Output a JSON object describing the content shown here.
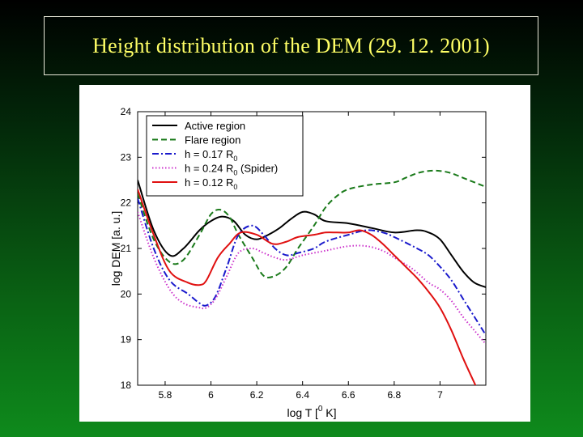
{
  "slide": {
    "title": "Height distribution of the DEM (29. 12. 2001)"
  },
  "chart_data": {
    "type": "line",
    "title": "",
    "xlabel": "log T [⁰ K]",
    "xlabel_main": "log T [",
    "xlabel_sup": "0",
    "xlabel_end": " K]",
    "ylabel": "log DEM [a. u.]",
    "xlim": [
      5.68,
      7.2
    ],
    "ylim": [
      18,
      24
    ],
    "xticks": [
      "5.8",
      "6",
      "6.2",
      "6.4",
      "6.6",
      "6.8",
      "7"
    ],
    "xtick_values": [
      5.8,
      6.0,
      6.2,
      6.4,
      6.6,
      6.8,
      7.0
    ],
    "yticks": [
      "18",
      "19",
      "20",
      "21",
      "22",
      "23",
      "24"
    ],
    "ytick_values": [
      18,
      19,
      20,
      21,
      22,
      23,
      24
    ],
    "grid": false,
    "legend_position": "top-left",
    "series": [
      {
        "name": "Active region",
        "color": "#000000",
        "dash": "solid",
        "points": [
          [
            5.68,
            22.5
          ],
          [
            5.75,
            21.4
          ],
          [
            5.82,
            20.85
          ],
          [
            5.88,
            21.0
          ],
          [
            5.95,
            21.4
          ],
          [
            6.0,
            21.6
          ],
          [
            6.05,
            21.7
          ],
          [
            6.1,
            21.6
          ],
          [
            6.15,
            21.3
          ],
          [
            6.2,
            21.2
          ],
          [
            6.25,
            21.3
          ],
          [
            6.3,
            21.45
          ],
          [
            6.35,
            21.65
          ],
          [
            6.4,
            21.8
          ],
          [
            6.45,
            21.75
          ],
          [
            6.5,
            21.6
          ],
          [
            6.6,
            21.55
          ],
          [
            6.7,
            21.45
          ],
          [
            6.8,
            21.35
          ],
          [
            6.9,
            21.4
          ],
          [
            6.95,
            21.35
          ],
          [
            7.0,
            21.2
          ],
          [
            7.05,
            20.85
          ],
          [
            7.1,
            20.5
          ],
          [
            7.15,
            20.25
          ],
          [
            7.2,
            20.15
          ]
        ]
      },
      {
        "name": "Flare region",
        "color": "#1a7a1a",
        "dash": "dashed",
        "points": [
          [
            5.68,
            22.2
          ],
          [
            5.75,
            21.2
          ],
          [
            5.82,
            20.7
          ],
          [
            5.88,
            20.75
          ],
          [
            5.95,
            21.3
          ],
          [
            6.0,
            21.75
          ],
          [
            6.04,
            21.85
          ],
          [
            6.08,
            21.7
          ],
          [
            6.12,
            21.3
          ],
          [
            6.18,
            20.8
          ],
          [
            6.23,
            20.4
          ],
          [
            6.28,
            20.4
          ],
          [
            6.33,
            20.6
          ],
          [
            6.38,
            21.0
          ],
          [
            6.45,
            21.5
          ],
          [
            6.5,
            21.9
          ],
          [
            6.55,
            22.15
          ],
          [
            6.6,
            22.3
          ],
          [
            6.7,
            22.4
          ],
          [
            6.8,
            22.45
          ],
          [
            6.85,
            22.55
          ],
          [
            6.9,
            22.65
          ],
          [
            6.95,
            22.7
          ],
          [
            7.0,
            22.7
          ],
          [
            7.05,
            22.65
          ],
          [
            7.1,
            22.55
          ],
          [
            7.15,
            22.45
          ],
          [
            7.2,
            22.35
          ]
        ]
      },
      {
        "name": "h = 0.17 R",
        "name_sub": "0",
        "color": "#1a1acc",
        "dash": "dashdot",
        "points": [
          [
            5.68,
            22.1
          ],
          [
            5.75,
            21.0
          ],
          [
            5.82,
            20.3
          ],
          [
            5.9,
            20.0
          ],
          [
            5.95,
            19.8
          ],
          [
            5.98,
            19.75
          ],
          [
            6.02,
            19.95
          ],
          [
            6.07,
            20.6
          ],
          [
            6.12,
            21.3
          ],
          [
            6.18,
            21.5
          ],
          [
            6.23,
            21.3
          ],
          [
            6.28,
            21.0
          ],
          [
            6.33,
            20.85
          ],
          [
            6.38,
            20.9
          ],
          [
            6.45,
            21.0
          ],
          [
            6.5,
            21.15
          ],
          [
            6.6,
            21.3
          ],
          [
            6.68,
            21.4
          ],
          [
            6.75,
            21.35
          ],
          [
            6.8,
            21.25
          ],
          [
            6.9,
            21.0
          ],
          [
            6.95,
            20.85
          ],
          [
            7.0,
            20.6
          ],
          [
            7.05,
            20.3
          ],
          [
            7.1,
            19.9
          ],
          [
            7.15,
            19.5
          ],
          [
            7.2,
            19.1
          ]
        ]
      },
      {
        "name": "h = 0.24 R",
        "name_sub": "0",
        "name_suffix": " (Spider)",
        "color": "#cc33cc",
        "dash": "dotted",
        "points": [
          [
            5.68,
            21.8
          ],
          [
            5.75,
            20.8
          ],
          [
            5.82,
            20.1
          ],
          [
            5.88,
            19.8
          ],
          [
            5.95,
            19.7
          ],
          [
            5.98,
            19.7
          ],
          [
            6.02,
            19.9
          ],
          [
            6.07,
            20.4
          ],
          [
            6.12,
            20.9
          ],
          [
            6.18,
            21.0
          ],
          [
            6.23,
            20.9
          ],
          [
            6.28,
            20.8
          ],
          [
            6.33,
            20.75
          ],
          [
            6.4,
            20.85
          ],
          [
            6.5,
            20.95
          ],
          [
            6.6,
            21.05
          ],
          [
            6.68,
            21.05
          ],
          [
            6.75,
            20.95
          ],
          [
            6.8,
            20.8
          ],
          [
            6.88,
            20.55
          ],
          [
            6.95,
            20.25
          ],
          [
            7.0,
            20.1
          ],
          [
            7.05,
            19.85
          ],
          [
            7.1,
            19.5
          ],
          [
            7.15,
            19.2
          ],
          [
            7.2,
            18.9
          ]
        ]
      },
      {
        "name": "h = 0.12 R",
        "name_sub": "0",
        "color": "#e01010",
        "dash": "solid",
        "points": [
          [
            5.68,
            22.3
          ],
          [
            5.75,
            21.3
          ],
          [
            5.82,
            20.5
          ],
          [
            5.9,
            20.25
          ],
          [
            5.95,
            20.2
          ],
          [
            5.98,
            20.3
          ],
          [
            6.03,
            20.8
          ],
          [
            6.08,
            21.1
          ],
          [
            6.13,
            21.35
          ],
          [
            6.2,
            21.3
          ],
          [
            6.27,
            21.1
          ],
          [
            6.33,
            21.15
          ],
          [
            6.38,
            21.25
          ],
          [
            6.45,
            21.3
          ],
          [
            6.5,
            21.35
          ],
          [
            6.55,
            21.35
          ],
          [
            6.6,
            21.35
          ],
          [
            6.65,
            21.4
          ],
          [
            6.7,
            21.3
          ],
          [
            6.75,
            21.1
          ],
          [
            6.8,
            20.85
          ],
          [
            6.85,
            20.6
          ],
          [
            6.9,
            20.35
          ],
          [
            6.95,
            20.05
          ],
          [
            7.0,
            19.7
          ],
          [
            7.05,
            19.2
          ],
          [
            7.1,
            18.6
          ],
          [
            7.15,
            18.05
          ],
          [
            7.2,
            17.5
          ]
        ]
      }
    ]
  }
}
